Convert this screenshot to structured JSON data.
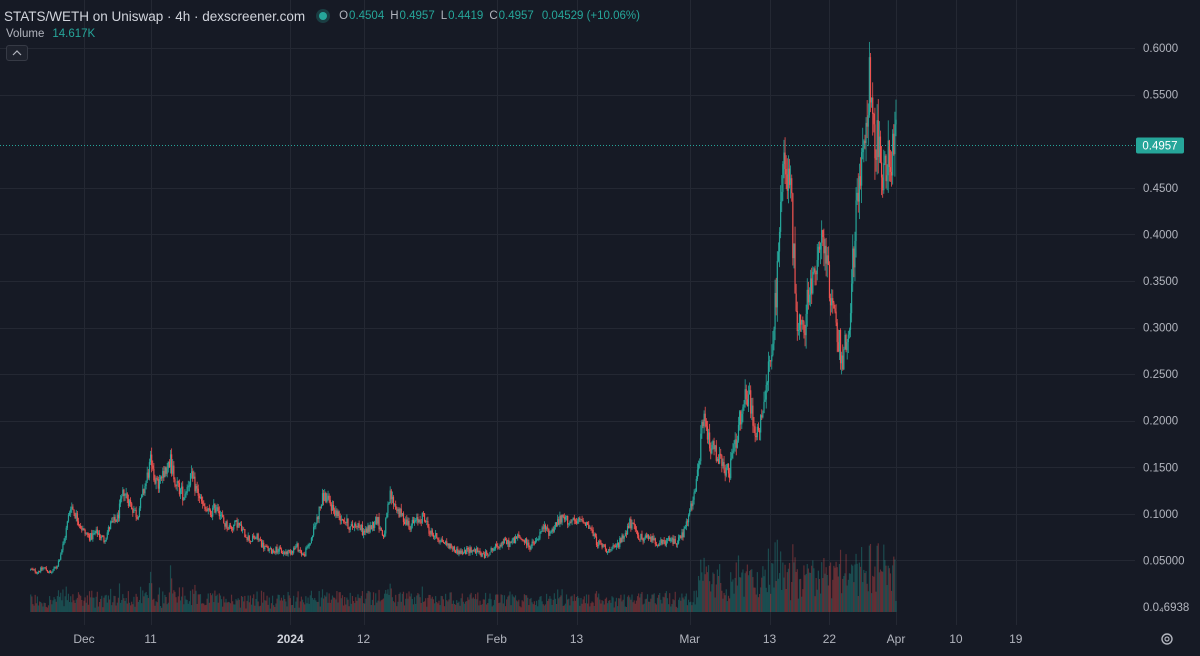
{
  "header": {
    "title": "STATS/WETH on Uniswap · 4h · dexscreener.com",
    "ohlc": {
      "o_label": "O",
      "o_value": "0.4504",
      "h_label": "H",
      "h_value": "0.4957",
      "l_label": "L",
      "l_value": "0.4419",
      "c_label": "C",
      "c_value": "0.4957",
      "change": "0.04529 (+10.06%)"
    },
    "volume_label": "Volume",
    "volume_value": "14.617K"
  },
  "colors": {
    "background": "#161a25",
    "grid": "#242833",
    "up": "#26a69a",
    "down": "#ef5350",
    "axis_text": "#b2b5be",
    "last_price_bg": "#26a69a"
  },
  "icons": {
    "collapse": "chevron-up-icon",
    "settings": "gear-icon",
    "live": "live-dot-icon"
  },
  "chart_data": {
    "type": "candlestick",
    "title": "STATS/WETH on Uniswap · 4h · dexscreener.com",
    "xlabel": "",
    "ylabel": "",
    "ylim": [
      0.0,
      0.62
    ],
    "y_ticks": [
      0.6,
      0.55,
      0.45,
      0.4,
      0.35,
      0.3,
      0.25,
      0.2,
      0.15,
      0.1,
      0.05
    ],
    "y_tick_labels": [
      "0.6000",
      "0.5500",
      "0.4500",
      "0.4000",
      "0.3500",
      "0.3000",
      "0.2500",
      "0.2000",
      "0.1500",
      "0.1000",
      "0.05000"
    ],
    "bottom_tick_label": "0.0₄6938",
    "last_price": 0.4957,
    "last_price_label": "0.4957",
    "x_tick_labels": [
      "Dec",
      "11",
      "2024",
      "12",
      "Feb",
      "13",
      "Mar",
      "13",
      "22",
      "Apr",
      "10",
      "19"
    ],
    "x_tick_bold": [
      false,
      false,
      true,
      false,
      false,
      false,
      false,
      false,
      false,
      false,
      false,
      false
    ],
    "x_tick_dates": [
      "2023-12-01",
      "2023-12-11",
      "2024-01-01",
      "2024-01-12",
      "2024-02-01",
      "2024-02-13",
      "2024-03-01",
      "2024-03-13",
      "2024-03-22",
      "2024-04-01",
      "2024-04-10",
      "2024-04-19"
    ],
    "grid": true,
    "close_path": [
      [
        "2023-11-23",
        0.04
      ],
      [
        "2023-11-24",
        0.038
      ],
      [
        "2023-11-25",
        0.042
      ],
      [
        "2023-11-26",
        0.036
      ],
      [
        "2023-11-27",
        0.045
      ],
      [
        "2023-11-28",
        0.07
      ],
      [
        "2023-11-29",
        0.11
      ],
      [
        "2023-11-30",
        0.095
      ],
      [
        "2023-12-01",
        0.08
      ],
      [
        "2023-12-02",
        0.075
      ],
      [
        "2023-12-03",
        0.08
      ],
      [
        "2023-12-04",
        0.072
      ],
      [
        "2023-12-05",
        0.088
      ],
      [
        "2023-12-06",
        0.095
      ],
      [
        "2023-12-07",
        0.125
      ],
      [
        "2023-12-08",
        0.11
      ],
      [
        "2023-12-09",
        0.098
      ],
      [
        "2023-12-10",
        0.125
      ],
      [
        "2023-12-11",
        0.155
      ],
      [
        "2023-12-12",
        0.13
      ],
      [
        "2023-12-13",
        0.14
      ],
      [
        "2023-12-14",
        0.155
      ],
      [
        "2023-12-15",
        0.13
      ],
      [
        "2023-12-16",
        0.12
      ],
      [
        "2023-12-17",
        0.14
      ],
      [
        "2023-12-18",
        0.125
      ],
      [
        "2023-12-19",
        0.105
      ],
      [
        "2023-12-20",
        0.1
      ],
      [
        "2023-12-21",
        0.11
      ],
      [
        "2023-12-22",
        0.09
      ],
      [
        "2023-12-23",
        0.085
      ],
      [
        "2023-12-24",
        0.09
      ],
      [
        "2023-12-25",
        0.08
      ],
      [
        "2023-12-26",
        0.072
      ],
      [
        "2023-12-27",
        0.075
      ],
      [
        "2023-12-28",
        0.065
      ],
      [
        "2023-12-29",
        0.06
      ],
      [
        "2023-12-30",
        0.062
      ],
      [
        "2023-12-31",
        0.058
      ],
      [
        "2024-01-01",
        0.06
      ],
      [
        "2024-01-02",
        0.065
      ],
      [
        "2024-01-03",
        0.055
      ],
      [
        "2024-01-04",
        0.07
      ],
      [
        "2024-01-05",
        0.095
      ],
      [
        "2024-01-06",
        0.12
      ],
      [
        "2024-01-07",
        0.11
      ],
      [
        "2024-01-08",
        0.1
      ],
      [
        "2024-01-09",
        0.095
      ],
      [
        "2024-01-10",
        0.085
      ],
      [
        "2024-01-11",
        0.09
      ],
      [
        "2024-01-12",
        0.08
      ],
      [
        "2024-01-13",
        0.085
      ],
      [
        "2024-01-14",
        0.095
      ],
      [
        "2024-01-15",
        0.075
      ],
      [
        "2024-01-16",
        0.12
      ],
      [
        "2024-01-17",
        0.105
      ],
      [
        "2024-01-18",
        0.095
      ],
      [
        "2024-01-19",
        0.088
      ],
      [
        "2024-01-20",
        0.092
      ],
      [
        "2024-01-21",
        0.098
      ],
      [
        "2024-01-22",
        0.08
      ],
      [
        "2024-01-23",
        0.075
      ],
      [
        "2024-01-24",
        0.07
      ],
      [
        "2024-01-25",
        0.065
      ],
      [
        "2024-01-26",
        0.06
      ],
      [
        "2024-01-27",
        0.058
      ],
      [
        "2024-01-28",
        0.062
      ],
      [
        "2024-01-29",
        0.06
      ],
      [
        "2024-01-30",
        0.055
      ],
      [
        "2024-01-31",
        0.06
      ],
      [
        "2024-02-01",
        0.065
      ],
      [
        "2024-02-02",
        0.07
      ],
      [
        "2024-02-03",
        0.068
      ],
      [
        "2024-02-04",
        0.075
      ],
      [
        "2024-02-05",
        0.072
      ],
      [
        "2024-02-06",
        0.065
      ],
      [
        "2024-02-07",
        0.07
      ],
      [
        "2024-02-08",
        0.085
      ],
      [
        "2024-02-09",
        0.08
      ],
      [
        "2024-02-10",
        0.09
      ],
      [
        "2024-02-11",
        0.095
      ],
      [
        "2024-02-12",
        0.092
      ],
      [
        "2024-02-13",
        0.09
      ],
      [
        "2024-02-14",
        0.095
      ],
      [
        "2024-02-15",
        0.085
      ],
      [
        "2024-02-16",
        0.07
      ],
      [
        "2024-02-17",
        0.065
      ],
      [
        "2024-02-18",
        0.06
      ],
      [
        "2024-02-19",
        0.065
      ],
      [
        "2024-02-20",
        0.075
      ],
      [
        "2024-02-21",
        0.09
      ],
      [
        "2024-02-22",
        0.08
      ],
      [
        "2024-02-23",
        0.072
      ],
      [
        "2024-02-24",
        0.075
      ],
      [
        "2024-02-25",
        0.07
      ],
      [
        "2024-02-26",
        0.068
      ],
      [
        "2024-02-27",
        0.072
      ],
      [
        "2024-02-28",
        0.07
      ],
      [
        "2024-02-29",
        0.078
      ],
      [
        "2024-03-01",
        0.1
      ],
      [
        "2024-03-02",
        0.13
      ],
      [
        "2024-03-03",
        0.2
      ],
      [
        "2024-03-04",
        0.175
      ],
      [
        "2024-03-05",
        0.165
      ],
      [
        "2024-03-06",
        0.15
      ],
      [
        "2024-03-07",
        0.145
      ],
      [
        "2024-03-08",
        0.18
      ],
      [
        "2024-03-09",
        0.22
      ],
      [
        "2024-03-10",
        0.225
      ],
      [
        "2024-03-11",
        0.185
      ],
      [
        "2024-03-12",
        0.2
      ],
      [
        "2024-03-13",
        0.26
      ],
      [
        "2024-03-14",
        0.33
      ],
      [
        "2024-03-15",
        0.46
      ],
      [
        "2024-03-16",
        0.47
      ],
      [
        "2024-03-17",
        0.32
      ],
      [
        "2024-03-18",
        0.29
      ],
      [
        "2024-03-19",
        0.34
      ],
      [
        "2024-03-20",
        0.37
      ],
      [
        "2024-03-21",
        0.395
      ],
      [
        "2024-03-22",
        0.34
      ],
      [
        "2024-03-23",
        0.3
      ],
      [
        "2024-03-24",
        0.265
      ],
      [
        "2024-03-25",
        0.31
      ],
      [
        "2024-03-26",
        0.42
      ],
      [
        "2024-03-27",
        0.5
      ],
      [
        "2024-03-28",
        0.56
      ],
      [
        "2024-03-29",
        0.5
      ],
      [
        "2024-03-30",
        0.47
      ],
      [
        "2024-03-31",
        0.48
      ],
      [
        "2024-04-01",
        0.4957
      ]
    ]
  }
}
